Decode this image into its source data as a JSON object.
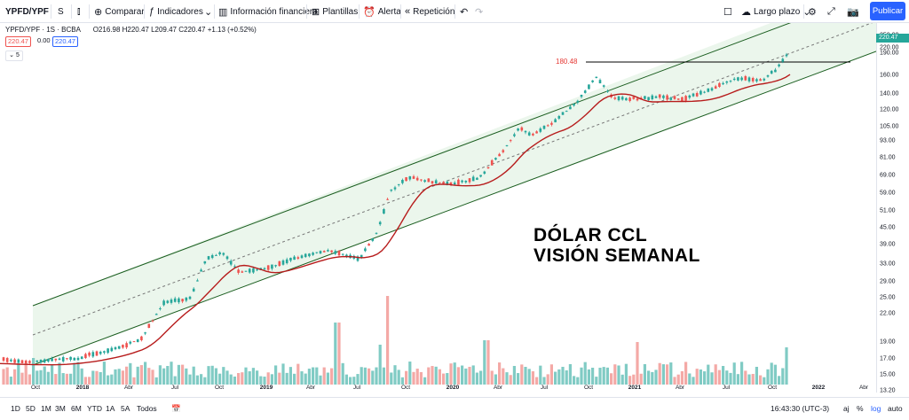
{
  "toolbar": {
    "symbol": "YPFD/YPF",
    "interval": "S",
    "compare": "Comparar",
    "indicators": "Indicadores",
    "financials": "Información financiera",
    "templates": "Plantillas",
    "alert": "Alerta",
    "replay": "Repetición",
    "layout": "Largo plazo",
    "publish": "Publicar"
  },
  "legend": {
    "title": "YPFD/YPF · 1S · BCBA",
    "ohlc": "O216.98  H220.47  L209.47  C220.47  +1.13 (+0.52%)",
    "sell": "220.47",
    "spread": "0.00",
    "buy": "220.47",
    "collapse": "5"
  },
  "overlay_text": [
    "DÓLAR CCL",
    "VISIÓN SEMANAL"
  ],
  "annotation": "180.48",
  "price_axis": {
    "labels": [
      "250.00",
      "220.00",
      "190.00",
      "160.00",
      "140.00",
      "120.00",
      "105.00",
      "93.00",
      "81.00",
      "69.00",
      "59.00",
      "51.00",
      "45.00",
      "39.00",
      "33.00",
      "29.00",
      "25.00",
      "22.00",
      "19.00",
      "17.00",
      "15.00",
      "13.20",
      "12.00"
    ],
    "last": "220.47"
  },
  "time_axis": [
    {
      "t": "Oct",
      "y": false
    },
    {
      "t": "2018",
      "y": true
    },
    {
      "t": "Abr",
      "y": false
    },
    {
      "t": "Jul",
      "y": false
    },
    {
      "t": "Oct",
      "y": false
    },
    {
      "t": "2019",
      "y": true
    },
    {
      "t": "Abr",
      "y": false
    },
    {
      "t": "Jul",
      "y": false
    },
    {
      "t": "Oct",
      "y": false
    },
    {
      "t": "2020",
      "y": true
    },
    {
      "t": "Abr",
      "y": false
    },
    {
      "t": "Jul",
      "y": false
    },
    {
      "t": "Oct",
      "y": false
    },
    {
      "t": "2021",
      "y": true
    },
    {
      "t": "Abr",
      "y": false
    },
    {
      "t": "Jul",
      "y": false
    },
    {
      "t": "Oct",
      "y": false
    },
    {
      "t": "2022",
      "y": true
    },
    {
      "t": "Abr",
      "y": false
    }
  ],
  "ranges": [
    "1D",
    "5D",
    "1M",
    "3M",
    "6M",
    "YTD",
    "1A",
    "5A",
    "Todos"
  ],
  "status": {
    "clock": "16:43:30 (UTC-3)",
    "adj": "aj",
    "pct": "%",
    "log": "log",
    "auto": "auto"
  },
  "colors": {
    "up": "#26a69a",
    "down": "#ef5350",
    "ma": "#b71c1c",
    "channel": "#e8f5e9",
    "accent": "#2962ff"
  },
  "chart_data": {
    "type": "line",
    "scale": "log",
    "ylim": [
      12,
      260
    ],
    "series": [
      {
        "name": "",
        "x": [
          "2017-10",
          "2018-01",
          "2018-04",
          "2018-07",
          "2018-09",
          "2018-12",
          "2019-04",
          "2019-08",
          "2019-10",
          "2020-01",
          "2020-04",
          "2020-07",
          "2020-10",
          "2021-01",
          "2021-04",
          "2021-07",
          "2021-10",
          "2021-11"
        ],
        "values": [
          17.5,
          18,
          20,
          28,
          42,
          38,
          43,
          42,
          75,
          75,
          95,
          125,
          175,
          150,
          148,
          165,
          185,
          220.47
        ]
      }
    ],
    "annotations": [
      "180.48"
    ]
  }
}
